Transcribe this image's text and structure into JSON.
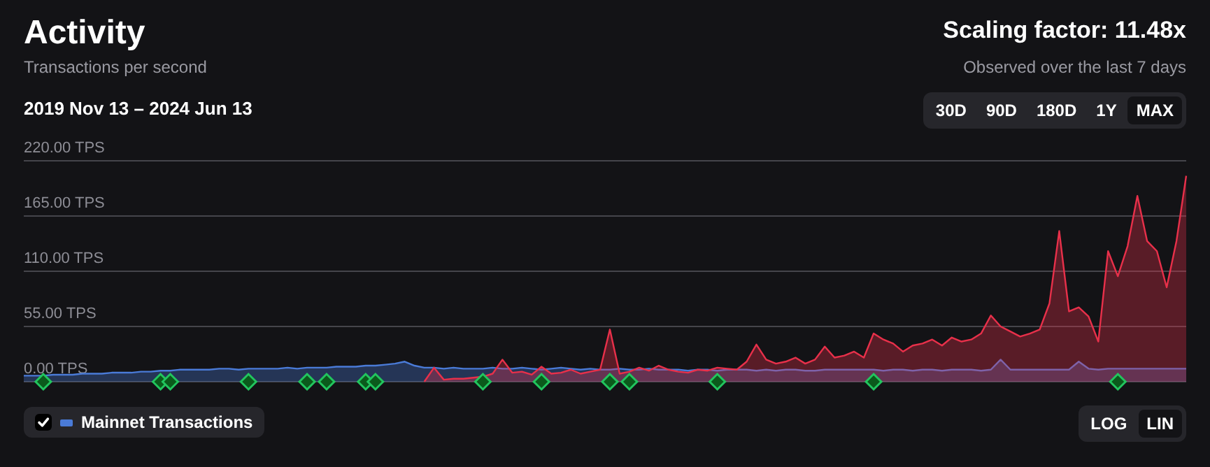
{
  "chart_data": {
    "type": "area",
    "title": "Activity",
    "subtitle": "Transactions per second",
    "annotations": [
      "2019 Nov 13 – 2024 Jun 13",
      "Scaling factor: 11.48x",
      "Observed over the last 7 days",
      "30D",
      "90D",
      "180D",
      "1Y",
      "MAX",
      "LOG",
      "LIN"
    ],
    "categories": [
      null,
      null,
      null,
      null,
      null,
      null,
      null,
      null,
      null,
      null,
      null,
      null,
      null,
      null,
      null,
      null,
      null,
      null,
      null,
      null,
      null,
      null,
      null,
      null,
      null,
      null,
      null,
      null,
      null,
      null,
      null,
      null,
      null,
      null,
      null,
      null,
      null,
      null,
      null,
      null,
      null,
      null,
      null,
      null,
      null,
      null,
      null,
      null,
      null,
      null,
      null,
      null,
      null,
      null,
      null,
      null,
      null,
      null,
      null,
      null,
      null,
      null,
      null,
      null,
      null,
      null,
      null,
      null,
      null,
      null,
      null,
      null,
      null,
      null,
      null,
      null,
      null,
      null,
      null,
      null,
      null,
      null,
      null,
      null,
      null,
      null,
      null,
      null,
      null,
      null,
      null,
      null,
      null,
      null,
      null,
      null,
      null,
      null,
      null,
      null,
      null,
      null,
      null,
      null,
      null,
      null,
      null,
      null,
      null,
      null,
      null,
      null,
      null,
      null,
      null,
      null,
      null,
      null,
      null,
      null
    ],
    "ylim": [
      0,
      220
    ],
    "yticks": [
      {
        "value": 0,
        "label": "0.00 TPS"
      },
      {
        "value": 55,
        "label": "55.00 TPS"
      },
      {
        "value": 110,
        "label": "110.00 TPS"
      },
      {
        "value": 165,
        "label": "165.00 TPS"
      },
      {
        "value": 220,
        "label": "220.00 TPS"
      }
    ],
    "grid": "y",
    "legend": "bottom left",
    "series": [
      {
        "color": "#e8304a",
        "values": [
          null,
          null,
          null,
          null,
          null,
          null,
          null,
          null,
          null,
          null,
          null,
          null,
          null,
          null,
          null,
          null,
          null,
          null,
          null,
          null,
          null,
          null,
          null,
          null,
          null,
          null,
          null,
          null,
          null,
          null,
          null,
          null,
          null,
          null,
          null,
          null,
          null,
          null,
          null,
          null,
          null,
          0,
          14,
          2,
          3,
          3,
          4,
          5,
          8,
          22,
          9,
          10,
          7,
          15,
          8,
          9,
          12,
          8,
          10,
          12,
          52,
          8,
          10,
          14,
          11,
          16,
          12,
          10,
          9,
          12,
          11,
          14,
          13,
          12,
          20,
          37,
          22,
          18,
          20,
          24,
          18,
          22,
          35,
          24,
          26,
          30,
          24,
          48,
          42,
          38,
          30,
          36,
          38,
          42,
          36,
          44,
          40,
          42,
          48,
          66,
          55,
          50,
          45,
          48,
          52,
          78,
          150,
          70,
          74,
          65,
          40,
          130,
          105,
          135,
          185,
          140,
          130,
          94,
          140,
          205
        ]
      },
      {
        "name": "Mainnet Transactions",
        "color": "#4a7bd8",
        "values": [
          6,
          6,
          6,
          7,
          7,
          7,
          8,
          8,
          8,
          9,
          9,
          9,
          10,
          10,
          11,
          11,
          12,
          12,
          12,
          12,
          13,
          13,
          12,
          13,
          13,
          13,
          13,
          14,
          13,
          14,
          14,
          14,
          15,
          15,
          15,
          16,
          16,
          17,
          18,
          20,
          16,
          14,
          14,
          13,
          14,
          13,
          13,
          13,
          14,
          13,
          13,
          14,
          13,
          12,
          13,
          14,
          13,
          12,
          13,
          12,
          12,
          13,
          12,
          12,
          13,
          12,
          12,
          12,
          11,
          12,
          12,
          11,
          12,
          12,
          12,
          11,
          12,
          11,
          12,
          12,
          11,
          11,
          12,
          12,
          12,
          12,
          12,
          12,
          11,
          12,
          12,
          11,
          12,
          12,
          11,
          12,
          12,
          12,
          11,
          12,
          22,
          12,
          12,
          12,
          12,
          12,
          12,
          12,
          20,
          13,
          12,
          13,
          13,
          13,
          13,
          13,
          13,
          13,
          13,
          13
        ]
      },
      {
        "type": "scatter",
        "marker": "diamond",
        "color": "#22c55e",
        "values": [
          null,
          null,
          0,
          null,
          null,
          null,
          null,
          null,
          null,
          null,
          null,
          null,
          null,
          null,
          0,
          0,
          null,
          null,
          null,
          null,
          null,
          null,
          null,
          0,
          null,
          null,
          null,
          null,
          null,
          0,
          null,
          0,
          null,
          null,
          null,
          0,
          0,
          null,
          null,
          null,
          null,
          null,
          null,
          null,
          null,
          null,
          null,
          0,
          null,
          null,
          null,
          null,
          null,
          0,
          null,
          null,
          null,
          null,
          null,
          null,
          0,
          null,
          0,
          null,
          null,
          null,
          null,
          null,
          null,
          null,
          null,
          0,
          null,
          null,
          null,
          null,
          null,
          null,
          null,
          null,
          null,
          null,
          null,
          null,
          null,
          null,
          null,
          0,
          null,
          null,
          null,
          null,
          null,
          null,
          null,
          null,
          null,
          null,
          null,
          null,
          null,
          null,
          null,
          null,
          null,
          null,
          null,
          null,
          null,
          null,
          null,
          null,
          0,
          null,
          null,
          null,
          null,
          null,
          null,
          null
        ]
      }
    ]
  }
}
